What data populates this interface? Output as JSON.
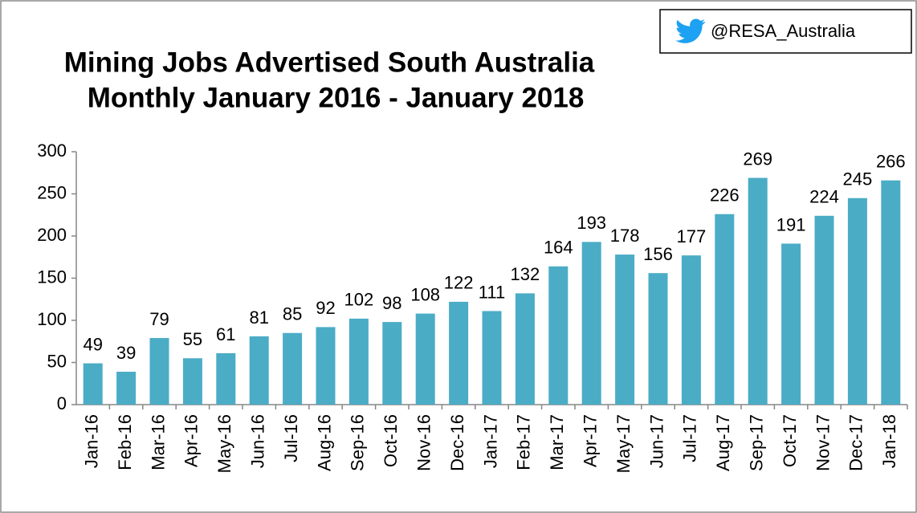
{
  "chart_data": {
    "type": "bar",
    "title": [
      "Mining Jobs Advertised South Australia",
      "Monthly January 2016 -  January 2018"
    ],
    "badge": "@RESA_Australia",
    "categories": [
      "Jan-16",
      "Feb-16",
      "Mar-16",
      "Apr-16",
      "May-16",
      "Jun-16",
      "Jul-16",
      "Aug-16",
      "Sep-16",
      "Oct-16",
      "Nov-16",
      "Dec-16",
      "Jan-17",
      "Feb-17",
      "Mar-17",
      "Apr-17",
      "May-17",
      "Jun-17",
      "Jul-17",
      "Aug-17",
      "Sep-17",
      "Oct-17",
      "Nov-17",
      "Dec-17",
      "Jan-18"
    ],
    "values": [
      49,
      39,
      79,
      55,
      61,
      81,
      85,
      92,
      102,
      98,
      108,
      122,
      111,
      132,
      164,
      193,
      178,
      156,
      177,
      226,
      269,
      191,
      224,
      245,
      266
    ],
    "color": "#4bacc6",
    "ylim": [
      0,
      300
    ],
    "yticks": [
      0,
      50,
      100,
      150,
      200,
      250,
      300
    ],
    "grid": false
  }
}
